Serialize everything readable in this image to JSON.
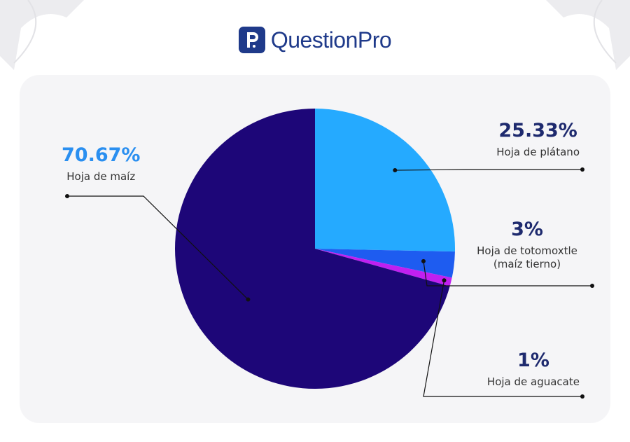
{
  "brand": {
    "name": "QuestionPro"
  },
  "chart_data": {
    "type": "pie",
    "series": [
      {
        "name": "Hoja de plátano",
        "value": 25.33,
        "value_label": "25.33%",
        "color": "#25aaff"
      },
      {
        "name": "Hoja de totomoxtle (maíz tierno)",
        "value": 3,
        "value_label": "3%",
        "color": "#1e5cf0"
      },
      {
        "name": "Hoja de aguacate",
        "value": 1,
        "value_label": "1%",
        "color": "#c020f0"
      },
      {
        "name": "Hoja de maíz",
        "value": 70.67,
        "value_label": "70.67%",
        "color": "#1d0678"
      }
    ],
    "label_colors": {
      "highlight": "#2a8ff0",
      "default": "#1e2a6e"
    }
  }
}
